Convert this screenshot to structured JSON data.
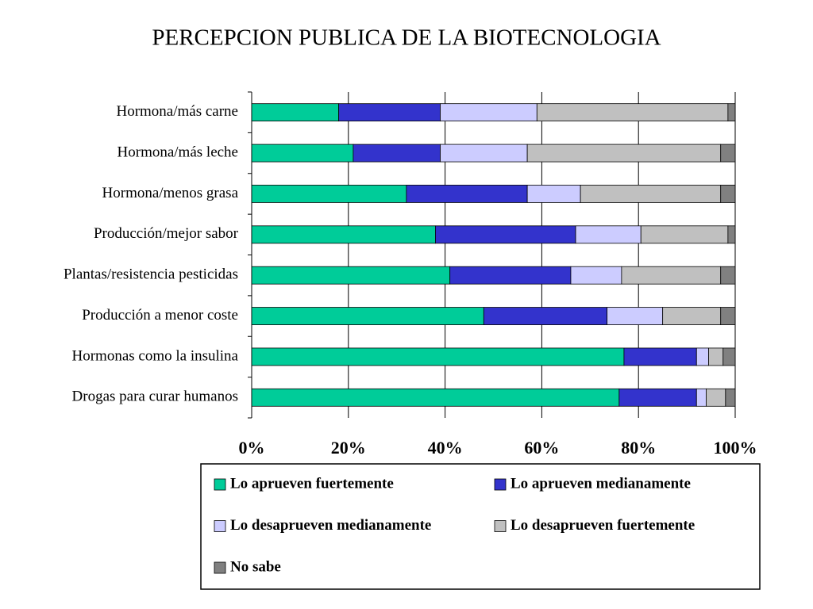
{
  "chart_data": {
    "type": "stacked_bar_horizontal",
    "title": "PERCEPCION PUBLICA DE LA BIOTECNOLOGIA",
    "categories": [
      "Hormona/más carne",
      "Hormona/más leche",
      "Hormona/menos grasa",
      "Producción/mejor sabor",
      "Plantas/resistencia pesticidas",
      "Producción a menor coste",
      "Hormonas como la insulina",
      "Drogas para curar humanos"
    ],
    "series": [
      {
        "name": "Lo aprueven fuertemente",
        "color": "#00cc99",
        "values": [
          18,
          21,
          32,
          38,
          41,
          48,
          77,
          76
        ]
      },
      {
        "name": "Lo aprueven medianamente",
        "color": "#3333cc",
        "values": [
          21,
          18,
          25,
          29,
          25,
          25.5,
          15,
          16
        ]
      },
      {
        "name": "Lo desaprueven medianamente",
        "color": "#ccccff",
        "values": [
          20,
          18,
          11,
          13.5,
          10.5,
          11.5,
          2.5,
          2
        ]
      },
      {
        "name": "Lo desaprueven fuertemente",
        "color": "#c0c0c0",
        "values": [
          39.5,
          40,
          29,
          18,
          20.5,
          12,
          3,
          4
        ]
      },
      {
        "name": "No sabe",
        "color": "#808080",
        "values": [
          1.5,
          3,
          3,
          1.5,
          3,
          3,
          2.5,
          2
        ]
      }
    ],
    "xlim": [
      0,
      100
    ],
    "xticks": [
      {
        "value": 0,
        "label": "0%"
      },
      {
        "value": 20,
        "label": "20%"
      },
      {
        "value": 40,
        "label": "40%"
      },
      {
        "value": 60,
        "label": "60%"
      },
      {
        "value": 80,
        "label": "80%"
      },
      {
        "value": 100,
        "label": "100%"
      }
    ],
    "grid": true
  }
}
